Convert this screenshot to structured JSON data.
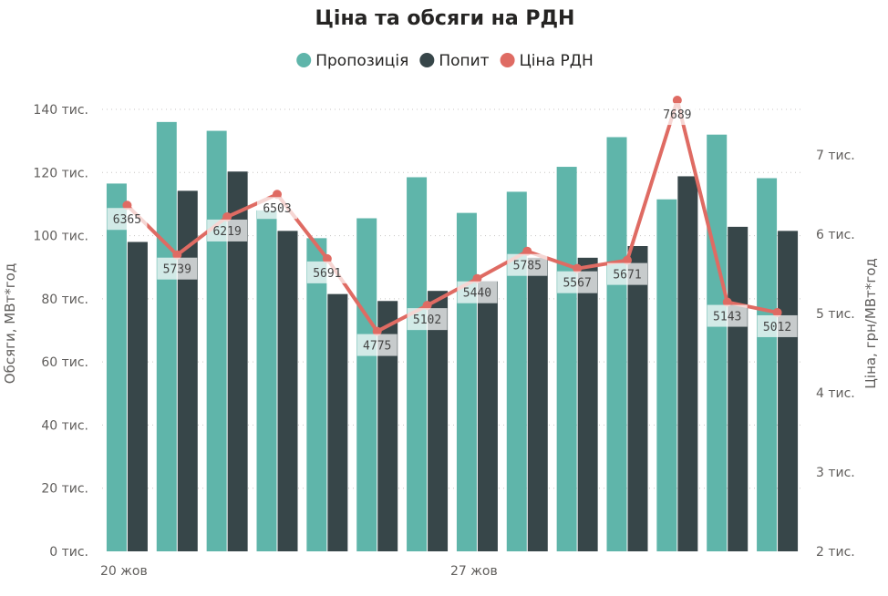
{
  "chart_data": {
    "type": "bar",
    "title": "Ціна та обсяги на РДН",
    "ylabel_left": "Обсяги, МВт*год",
    "ylabel_right": "Ціна, грн/МВт*год",
    "legend": [
      {
        "name": "Пропозиція",
        "color": "#5fb5aa"
      },
      {
        "name": "Попит",
        "color": "#374649"
      },
      {
        "name": "Ціна РДН",
        "color": "#df6b63"
      }
    ],
    "legend_position": "top-center",
    "grid": "horizontal-dotted",
    "x_tick_labels": [
      "20 жов",
      "",
      "",
      "",
      "",
      "",
      "",
      "27 жов",
      "",
      "",
      "",
      "",
      "",
      ""
    ],
    "y_left": {
      "min": 0,
      "max": 140000,
      "ticks": [
        0,
        20000,
        40000,
        60000,
        80000,
        100000,
        120000,
        140000
      ],
      "tick_labels": [
        "0 тис.",
        "20 тис.",
        "40 тис.",
        "60 тис.",
        "80 тис.",
        "100 тис.",
        "120 тис.",
        "140 тис."
      ]
    },
    "y_right": {
      "min": 2000,
      "max": 7000,
      "ticks": [
        2000,
        3000,
        4000,
        5000,
        6000,
        7000
      ],
      "tick_labels": [
        "2 тис.",
        "3 тис.",
        "4 тис.",
        "5 тис.",
        "6 тис.",
        "7 тис."
      ]
    },
    "series": [
      {
        "name": "Пропозиція",
        "type": "bar",
        "axis": "left",
        "color": "#5fb5aa",
        "values": [
          116500,
          136000,
          133200,
          108000,
          99200,
          105500,
          118500,
          107200,
          113900,
          121800,
          131200,
          111500,
          132000,
          118200
        ]
      },
      {
        "name": "Попит",
        "type": "bar",
        "axis": "left",
        "color": "#374649",
        "values": [
          98000,
          114200,
          120300,
          101500,
          81500,
          79300,
          82500,
          85500,
          93000,
          93000,
          96700,
          118800,
          102800,
          101500
        ]
      },
      {
        "name": "Ціна РДН",
        "type": "line",
        "axis": "right",
        "color": "#df6b63",
        "values": [
          6365,
          5739,
          6219,
          6503,
          5691,
          4775,
          5102,
          5440,
          5785,
          5567,
          5671,
          7689,
          5143,
          5012
        ],
        "data_labels": [
          "6365",
          "5739",
          "6219",
          "6503",
          "5691",
          "4775",
          "5102",
          "5440",
          "5785",
          "5567",
          "5671",
          "7689",
          "5143",
          "5012"
        ]
      }
    ]
  }
}
